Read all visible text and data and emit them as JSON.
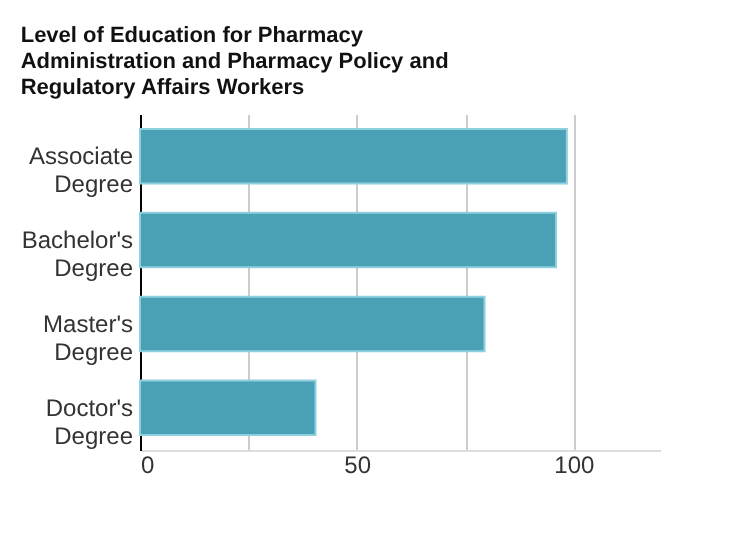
{
  "chart_data": {
    "type": "bar",
    "orientation": "horizontal",
    "title": "Level of Education for Pharmacy Administration and Pharmacy Policy and Regulatory Affairs Workers",
    "categories": [
      "Associate Degree",
      "Bachelor's Degree",
      "Master's Degree",
      "Doctor's Degree"
    ],
    "values": [
      98.5,
      96,
      79.5,
      40.5
    ],
    "color": "#4aa0b5",
    "xlim": [
      0,
      120
    ],
    "xticks": [
      0,
      {
        "value": 25,
        "label": null
      },
      50,
      {
        "value": 75,
        "label": null
      },
      100
    ],
    "grid": "x"
  }
}
